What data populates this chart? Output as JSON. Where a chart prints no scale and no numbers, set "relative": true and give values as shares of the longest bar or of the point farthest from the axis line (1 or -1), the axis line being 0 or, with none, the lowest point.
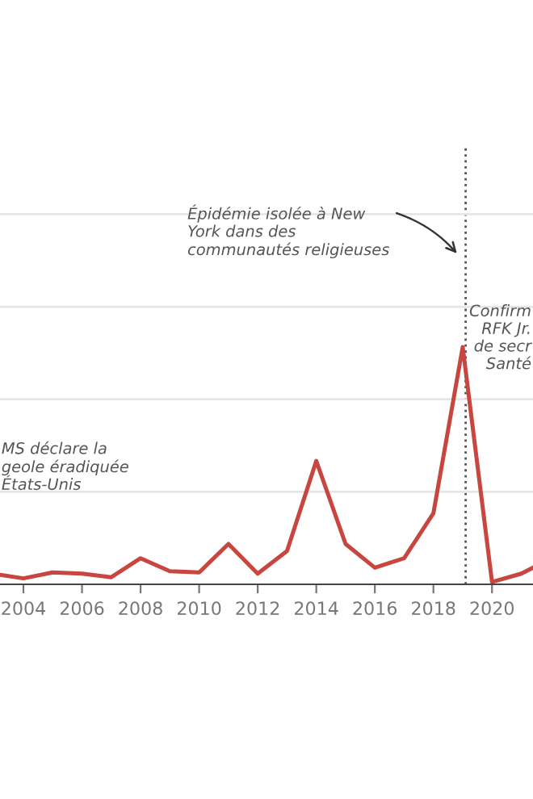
{
  "chart_data": {
    "type": "line",
    "relative": true,
    "series": [
      {
        "color": "#c7463f",
        "x": [
          2003.2,
          2004,
          2005,
          2006,
          2007,
          2008,
          2009,
          2010,
          2011,
          2012,
          2013,
          2014,
          2015,
          2016,
          2017,
          2018,
          2019,
          2020,
          2021,
          2021.4
        ],
        "values": [
          0.04,
          0.025,
          0.05,
          0.045,
          0.03,
          0.11,
          0.055,
          0.05,
          0.17,
          0.045,
          0.14,
          0.52,
          0.17,
          0.07,
          0.11,
          0.3,
          1.0,
          0.01,
          0.045,
          0.07
        ]
      }
    ],
    "xlim": [
      2003.2,
      2021.4
    ],
    "xticks": [
      2004,
      2006,
      2008,
      2010,
      2012,
      2014,
      2016,
      2018,
      2020
    ],
    "marker": "none",
    "line_style": "solid",
    "ref_lines": [
      {
        "axis": "x",
        "value": 2019.1,
        "color": "#555555",
        "line_style": "dotted"
      },
      {
        "axis": "y",
        "value": 0.39,
        "color": "#e6e6e6",
        "line_style": "solid"
      },
      {
        "axis": "y",
        "value": 0.78,
        "color": "#e6e6e6",
        "line_style": "solid"
      },
      {
        "axis": "y",
        "value": 1.17,
        "color": "#e6e6e6",
        "line_style": "solid"
      },
      {
        "axis": "y",
        "value": 1.56,
        "color": "#e6e6e6",
        "line_style": "solid"
      }
    ],
    "annotations": [
      "Épidémie isolée à New\nYork dans des\ncommunautés religieuses",
      "Confirm\nRFK Jr.\nde secr\nSanté",
      "MS déclare la\ngeole éradiquée\nÉtats-Unis"
    ]
  }
}
